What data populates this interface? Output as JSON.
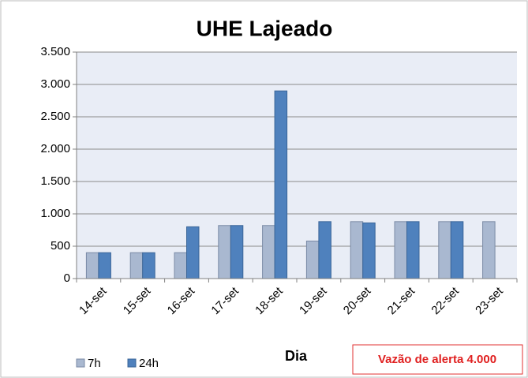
{
  "chart_data": {
    "type": "bar",
    "title": "UHE Lajeado",
    "categories": [
      "14-set",
      "15-set",
      "16-set",
      "17-set",
      "18-set",
      "19-set",
      "20-set",
      "21-set",
      "22-set",
      "23-set"
    ],
    "series": [
      {
        "name": "7h",
        "color": "#a9b8d0",
        "values": [
          400,
          400,
          400,
          820,
          820,
          580,
          880,
          880,
          880,
          880
        ]
      },
      {
        "name": "24h",
        "color": "#4f81bd",
        "values": [
          400,
          400,
          800,
          820,
          2900,
          880,
          860,
          880,
          880,
          null
        ]
      }
    ],
    "x_label": "Dia",
    "annotation": "Vazão de alerta 4.000",
    "ylim": [
      0,
      3500
    ],
    "yticks": [
      0,
      500,
      {
        "value": 1000,
        "label": "1.000"
      },
      {
        "value": 1500,
        "label": "1.500"
      },
      {
        "value": 2000,
        "label": "2.000"
      },
      {
        "value": 2500,
        "label": "2.500"
      },
      {
        "value": 3000,
        "label": "3.000"
      },
      {
        "value": 3500,
        "label": "3.500"
      }
    ],
    "grid": true
  }
}
